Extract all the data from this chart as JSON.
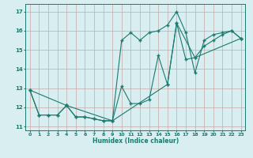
{
  "xlabel": "Humidex (Indice chaleur)",
  "bg_color": "#d8eef0",
  "grid_color": "#b8d8dc",
  "line_color": "#1a7a6e",
  "xlim": [
    -0.5,
    23.5
  ],
  "ylim": [
    10.8,
    17.4
  ],
  "yticks": [
    11,
    12,
    13,
    14,
    15,
    16,
    17
  ],
  "xticks": [
    0,
    1,
    2,
    3,
    4,
    5,
    6,
    7,
    8,
    9,
    10,
    11,
    12,
    13,
    14,
    15,
    16,
    17,
    18,
    19,
    20,
    21,
    22,
    23
  ],
  "line1_x": [
    0,
    1,
    2,
    3,
    4,
    5,
    6,
    7,
    8,
    9,
    10,
    11,
    12,
    13,
    14,
    15,
    16,
    17,
    18,
    19,
    20,
    21,
    22,
    23
  ],
  "line1_y": [
    12.9,
    11.6,
    11.6,
    11.6,
    12.1,
    11.5,
    11.5,
    11.4,
    11.3,
    11.3,
    15.5,
    15.9,
    15.5,
    15.9,
    16.0,
    16.3,
    17.0,
    15.9,
    13.8,
    15.5,
    15.8,
    15.9,
    16.0,
    15.6
  ],
  "line2_x": [
    0,
    1,
    2,
    3,
    4,
    5,
    6,
    7,
    8,
    9,
    10,
    11,
    12,
    13,
    14,
    15,
    16,
    17,
    18,
    19,
    20,
    21,
    22,
    23
  ],
  "line2_y": [
    12.9,
    11.6,
    11.6,
    11.6,
    12.1,
    11.5,
    11.5,
    11.4,
    11.3,
    11.3,
    13.1,
    12.2,
    12.2,
    12.4,
    14.7,
    13.2,
    16.4,
    14.5,
    14.6,
    15.2,
    15.5,
    15.8,
    16.0,
    15.6
  ],
  "line3_x": [
    0,
    4,
    9,
    15,
    16,
    18,
    23
  ],
  "line3_y": [
    12.9,
    12.1,
    11.3,
    13.2,
    16.4,
    14.6,
    15.6
  ]
}
